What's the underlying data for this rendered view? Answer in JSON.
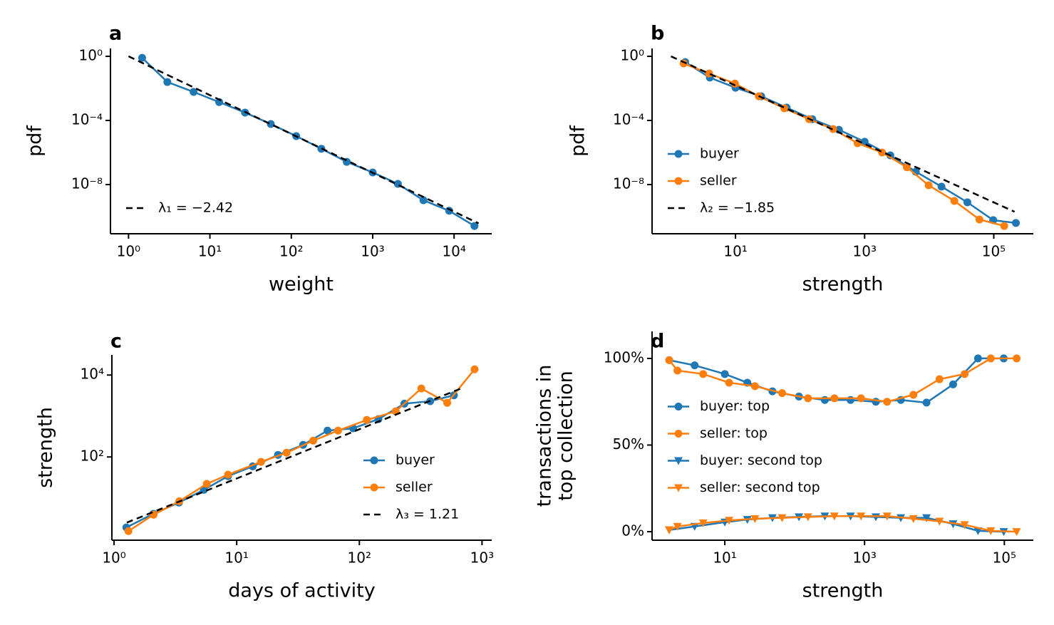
{
  "chart_data": [
    {
      "type": "line",
      "label": "a",
      "xlabel": "weight",
      "ylabel": [
        "pdf"
      ],
      "xscale": "log",
      "yscale": "log",
      "xlim": [
        0.6,
        29000
      ],
      "ylim": [
        8.5e-12,
        3.1
      ],
      "xticks": [
        {
          "value": 1,
          "label": "10⁰"
        },
        {
          "value": 10,
          "label": "10¹"
        },
        {
          "value": 100,
          "label": "10²"
        },
        {
          "value": 1000,
          "label": "10³"
        },
        {
          "value": 10000,
          "label": "10⁴"
        }
      ],
      "yticks": [
        {
          "value": 1,
          "label": "10⁰"
        },
        {
          "value": 0.0001,
          "label": "10⁻⁴"
        },
        {
          "value": 1e-08,
          "label": "10⁻⁸"
        }
      ],
      "legend": "lower left",
      "series": [
        {
          "color": "#1f77b4",
          "marker": "circle",
          "linestyle": "solid",
          "x": [
            1.47,
            3.0,
            6.3,
            13,
            27,
            56,
            115,
            234,
            480,
            1000,
            2040,
            4200,
            8700,
            17800
          ],
          "values": [
            0.81,
            0.025,
            0.006,
            0.0014,
            0.00031,
            6e-05,
            1.05e-05,
            1.7e-06,
            2.6e-07,
            5.7e-08,
            1.1e-08,
            1.05e-09,
            2.3e-10,
            2.6e-11
          ]
        },
        {
          "name": "λ₁ = −2.42",
          "color": "#000000",
          "marker": "none",
          "linestyle": "dashed",
          "x": [
            1,
            20000
          ],
          "values": [
            1,
            3.8e-11
          ]
        }
      ]
    },
    {
      "type": "line",
      "label": "b",
      "xlabel": "strength",
      "ylabel": [
        "pdf"
      ],
      "xscale": "log",
      "yscale": "log",
      "xlim": [
        0.51,
        410000
      ],
      "ylim": [
        8.5e-12,
        3.1
      ],
      "xticks": [
        {
          "value": 10,
          "label": "10¹"
        },
        {
          "value": 1000,
          "label": "10³"
        },
        {
          "value": 100000,
          "label": "10⁵"
        }
      ],
      "yticks": [
        {
          "value": 1,
          "label": "10⁰"
        },
        {
          "value": 0.0001,
          "label": "10⁻⁴"
        },
        {
          "value": 1e-08,
          "label": "10⁻⁸"
        }
      ],
      "legend": "lower left",
      "series": [
        {
          "name": "buyer",
          "color": "#1f77b4",
          "marker": "circle",
          "linestyle": "solid",
          "x": [
            1.66,
            4,
            10,
            25,
            62,
            155,
            400,
            1000,
            2500,
            6200,
            15500,
            39000,
            98000,
            220000
          ],
          "values": [
            0.44,
            0.047,
            0.011,
            0.0032,
            0.00063,
            0.00012,
            2.6e-05,
            4.7e-06,
            6.6e-07,
            6.3e-08,
            7.4e-09,
            7.8e-10,
            6e-11,
            4e-11
          ]
        },
        {
          "name": "seller",
          "color": "#ff7f0e",
          "marker": "circle",
          "linestyle": "solid",
          "x": [
            1.57,
            3.9,
            9.8,
            23,
            57,
            138,
            325,
            775,
            1860,
            4500,
            9800,
            24500,
            60000,
            145000
          ],
          "values": [
            0.36,
            0.085,
            0.02,
            0.0032,
            0.00057,
            0.00012,
            2.9e-05,
            3.8e-06,
            1e-06,
            1.2e-07,
            9e-09,
            9.5e-10,
            6.6e-11,
            2.6e-11
          ]
        },
        {
          "name": "λ₂ = −1.85",
          "color": "#000000",
          "marker": "none",
          "linestyle": "dashed",
          "x": [
            1,
            210000
          ],
          "values": [
            1,
            2e-10
          ]
        }
      ]
    },
    {
      "type": "line",
      "label": "c",
      "xlabel": "days of activity",
      "ylabel": [
        "strength"
      ],
      "xscale": "log",
      "yscale": "log",
      "xlim": [
        0.96,
        1200
      ],
      "ylim": [
        0.93,
        31000
      ],
      "xticks": [
        {
          "value": 1,
          "label": "10⁰"
        },
        {
          "value": 10,
          "label": "10¹"
        },
        {
          "value": 100,
          "label": "10²"
        },
        {
          "value": 1000,
          "label": "10³"
        }
      ],
      "yticks": [
        {
          "value": 100,
          "label": "10²"
        },
        {
          "value": 10000,
          "label": "10⁴"
        }
      ],
      "legend": "lower right",
      "series": [
        {
          "name": "buyer",
          "color": "#1f77b4",
          "marker": "circle",
          "linestyle": "solid",
          "x": [
            1.26,
            2.09,
            3.38,
            5.4,
            8.5,
            13.5,
            21.7,
            34.8,
            55,
            89,
            143,
            233,
            378,
            590
          ],
          "values": [
            1.9,
            4.1,
            7.7,
            15.8,
            34,
            59,
            112,
            197,
            440,
            500,
            840,
            2000,
            2300,
            3200
          ]
        },
        {
          "name": "seller",
          "color": "#ff7f0e",
          "marker": "circle",
          "linestyle": "solid",
          "x": [
            1.31,
            2.1,
            3.4,
            5.7,
            8.5,
            15.8,
            25.5,
            42,
            67,
            115,
            198,
            320,
            520,
            870
          ],
          "values": [
            1.55,
            3.9,
            8.3,
            22,
            37,
            76,
            127,
            250,
            440,
            800,
            1300,
            4700,
            2100,
            13800
          ]
        },
        {
          "name": "λ₃ = 1.21",
          "color": "#000000",
          "marker": "none",
          "linestyle": "dashed",
          "x": [
            1.27,
            710
          ],
          "values": [
            2.5,
            5000
          ]
        }
      ]
    },
    {
      "type": "line",
      "label": "d",
      "xlabel": "strength",
      "ylabel": [
        "transactions in",
        "top collection"
      ],
      "xscale": "log",
      "yscale": "linear",
      "xlim": [
        0.91,
        260000
      ],
      "ylim": [
        -4.9,
        115.6
      ],
      "xticks": [
        {
          "value": 10,
          "label": "10¹"
        },
        {
          "value": 1000,
          "label": "10³"
        },
        {
          "value": 100000,
          "label": "10⁵"
        }
      ],
      "yticks": [
        {
          "value": 0,
          "label": "0%"
        },
        {
          "value": 50,
          "label": "50%"
        },
        {
          "value": 100,
          "label": "100%"
        }
      ],
      "legend": "center left",
      "series": [
        {
          "name": "buyer: top",
          "color": "#1f77b4",
          "marker": "circle",
          "linestyle": "solid",
          "x": [
            1.6,
            3.7,
            10,
            21,
            48,
            115,
            270,
            630,
            1450,
            3300,
            7700,
            18500,
            42000,
            98000
          ],
          "values": [
            99,
            96,
            91,
            86,
            81,
            78,
            76,
            76,
            75,
            76,
            74.5,
            85,
            100,
            100
          ]
        },
        {
          "name": "seller: top",
          "color": "#ff7f0e",
          "marker": "circle",
          "linestyle": "solid",
          "x": [
            1.6,
            2.1,
            4.9,
            11.5,
            27,
            66,
            155,
            370,
            890,
            2100,
            5000,
            11800,
            27000,
            64000,
            150000
          ],
          "values": [
            99,
            93,
            91,
            86,
            84,
            80,
            77,
            77,
            77,
            75,
            79,
            88,
            91,
            100,
            100
          ]
        },
        {
          "name": "buyer: second top",
          "color": "#1f77b4",
          "marker": "triangle",
          "linestyle": "solid",
          "x": [
            1.6,
            3.7,
            10,
            21,
            48,
            115,
            270,
            630,
            1450,
            3300,
            7700,
            18500,
            42000,
            98000
          ],
          "values": [
            1,
            3,
            5.5,
            7,
            8,
            8.5,
            9,
            9,
            8.5,
            8,
            8,
            4.5,
            0.5,
            0
          ]
        },
        {
          "name": "seller: second top",
          "color": "#ff7f0e",
          "marker": "triangle",
          "linestyle": "solid",
          "x": [
            1.6,
            2.1,
            4.9,
            11.5,
            27,
            66,
            155,
            370,
            890,
            2100,
            5000,
            11800,
            27000,
            64000,
            150000
          ],
          "values": [
            1,
            3,
            5,
            6.5,
            7.5,
            8,
            8.5,
            9,
            9,
            9,
            7.5,
            6,
            4,
            0.5,
            0
          ]
        }
      ]
    }
  ]
}
